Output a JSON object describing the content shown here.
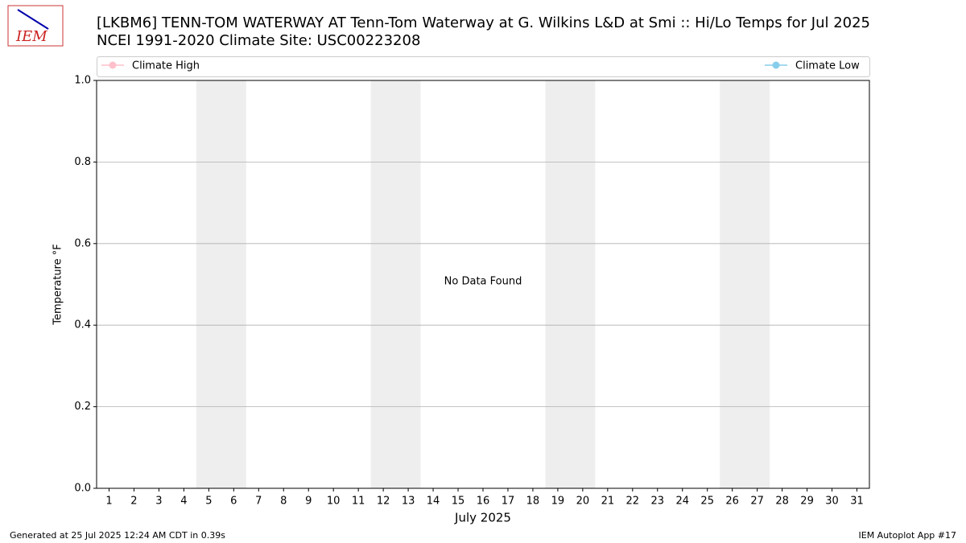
{
  "logo_text": "IEM",
  "chart_data": {
    "type": "line",
    "title": "[LKBM6] TENN-TOM WATERWAY  AT Tenn-Tom Waterway at G. Wilkins L&D at Smi :: Hi/Lo Temps for Jul 2025",
    "subtitle": "NCEI 1991-2020 Climate Site: USC00223208",
    "series": [
      {
        "name": "Climate High",
        "color": "pink"
      },
      {
        "name": "Climate Low",
        "color": "skyblue"
      }
    ],
    "xlabel": "July 2025",
    "ylabel": "Temperature °F",
    "annotation": "No Data Found",
    "xlim": [
      0.5,
      31.5
    ],
    "xticks": [
      1,
      2,
      3,
      4,
      5,
      6,
      7,
      8,
      9,
      10,
      11,
      12,
      13,
      14,
      15,
      16,
      17,
      18,
      19,
      20,
      21,
      22,
      23,
      24,
      25,
      26,
      27,
      28,
      29,
      30,
      31
    ],
    "ylim": [
      0,
      1
    ],
    "yticks": [
      {
        "value": 0,
        "label": "0.0"
      },
      0.2,
      0.4,
      0.6,
      0.8,
      {
        "value": 1,
        "label": "1.0"
      }
    ],
    "grid": true,
    "shaded_spans": [
      [
        4.5,
        6.5
      ],
      [
        11.5,
        13.5
      ],
      [
        18.5,
        20.5
      ],
      [
        25.5,
        27.5
      ]
    ],
    "shade_color": "#eeeeee",
    "footer_left": "Generated at 25 Jul 2025 12:24 AM CDT in 0.39s",
    "footer_right": "IEM Autoplot App #17"
  }
}
